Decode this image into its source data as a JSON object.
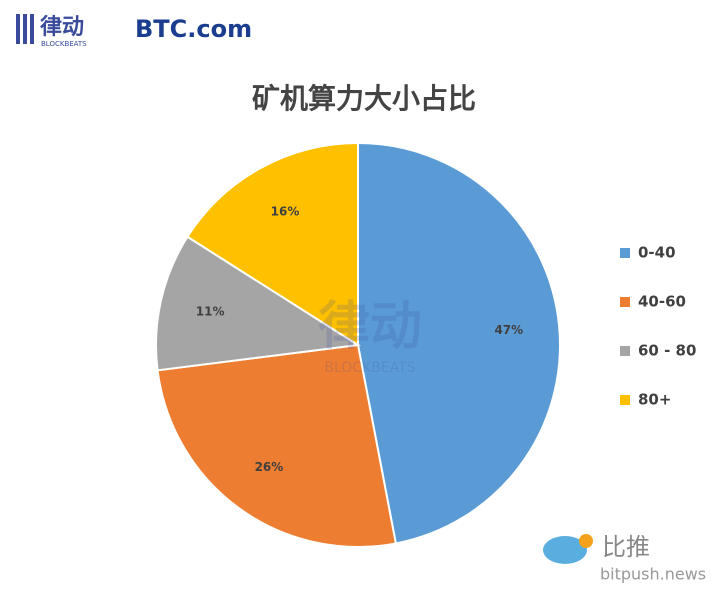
{
  "chart_data": {
    "type": "pie",
    "title": "矿机算力大小占比",
    "categories": [
      "0-40",
      "40-60",
      "60 - 80",
      "80+"
    ],
    "values": [
      47,
      26,
      11,
      16
    ],
    "value_labels": [
      "47%",
      "26%",
      "11%",
      "16%"
    ],
    "colors": [
      "#5b9bd5",
      "#ed7d31",
      "#a5a5a5",
      "#ffc000"
    ],
    "legend": "right"
  },
  "header": {
    "logo_cn": "律动",
    "logo_en": "BLOCKBEATS",
    "partner": "BTC.com"
  },
  "watermark": {
    "cn": "律动",
    "en": "BLOCKBEATS"
  },
  "footer": {
    "cn": "比推",
    "url": "bitpush.news"
  }
}
